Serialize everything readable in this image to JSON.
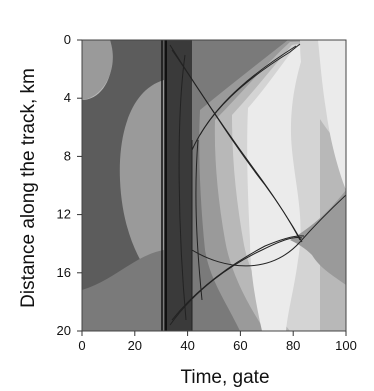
{
  "chart_data": {
    "type": "heatmap",
    "xlabel": "Time, gate",
    "ylabel": "Distance along the track, km",
    "xlim": [
      0,
      100
    ],
    "ylim": [
      20,
      0
    ],
    "xticks": [
      0,
      20,
      40,
      60,
      80,
      100
    ],
    "yticks": [
      0,
      4,
      8,
      12,
      16,
      20
    ],
    "y_axis_inverted": true,
    "grid": false,
    "legend": "none",
    "palette": [
      "#3a3a3a",
      "#5c5c5c",
      "#7a7a7a",
      "#9a9a9a",
      "#b8b8b8",
      "#d4d4d4",
      "#ebebeb"
    ],
    "features": {
      "vertical_boundary_x": [
        30,
        31,
        41
      ],
      "crossing_points": [
        {
          "x": 79,
          "y": 12
        },
        {
          "x": 79,
          "y": 1
        }
      ],
      "ridge_tip_right": {
        "x": 100,
        "y": 10
      }
    }
  }
}
